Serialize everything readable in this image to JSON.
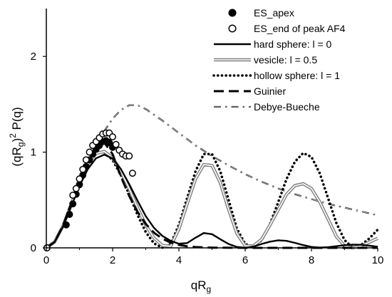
{
  "chart_data": {
    "type": "scatter",
    "xlabel": {
      "base": "qR",
      "sub": "g"
    },
    "ylabel": {
      "pre": "(qR",
      "sub": "g",
      "post": ")",
      "sup": "2",
      "tail": " P(q)"
    },
    "xlim": [
      0,
      10
    ],
    "ylim": [
      0,
      2.5
    ],
    "xticks": [
      "0",
      "2",
      "4",
      "6",
      "8",
      "10"
    ],
    "xtick_values": [
      0,
      2,
      4,
      6,
      8,
      10
    ],
    "yticks": [
      "0",
      "1",
      "2"
    ],
    "ytick_values": [
      0,
      1,
      2
    ],
    "grid": false,
    "legend_position": "top-right",
    "series": [
      {
        "name": "ES_apex",
        "kind": "points-filled",
        "color": "#000000",
        "points": [
          [
            0.02,
            0.0
          ],
          [
            0.6,
            0.24
          ],
          [
            0.7,
            0.35
          ],
          [
            0.8,
            0.46
          ],
          [
            0.9,
            0.56
          ],
          [
            1.0,
            0.66
          ],
          [
            1.1,
            0.76
          ],
          [
            1.2,
            0.85
          ],
          [
            1.3,
            0.92
          ],
          [
            1.4,
            0.98
          ],
          [
            1.5,
            1.03
          ],
          [
            1.6,
            1.07
          ],
          [
            1.7,
            1.11
          ],
          [
            1.8,
            1.12
          ],
          [
            1.9,
            1.1
          ],
          [
            2.0,
            1.05
          ]
        ]
      },
      {
        "name": "ES_end of peak AF4",
        "kind": "points-open",
        "color": "#000000",
        "points": [
          [
            0.02,
            0.0
          ],
          [
            0.8,
            0.55
          ],
          [
            0.9,
            0.62
          ],
          [
            1.0,
            0.72
          ],
          [
            1.1,
            0.82
          ],
          [
            1.2,
            0.92
          ],
          [
            1.3,
            1.0
          ],
          [
            1.4,
            1.07
          ],
          [
            1.5,
            1.11
          ],
          [
            1.6,
            1.15
          ],
          [
            1.7,
            1.19
          ],
          [
            1.8,
            1.2
          ],
          [
            1.9,
            1.2
          ],
          [
            2.0,
            1.16
          ],
          [
            2.1,
            1.08
          ],
          [
            2.2,
            1.02
          ],
          [
            2.3,
            0.98
          ],
          [
            2.4,
            0.96
          ],
          [
            2.5,
            0.96
          ],
          [
            2.6,
            0.78
          ]
        ]
      },
      {
        "name": "hard sphere: l = 0",
        "kind": "line-solid",
        "color": "#000000",
        "points": [
          [
            0,
            0
          ],
          [
            0.25,
            0.061
          ],
          [
            0.5,
            0.221
          ],
          [
            0.75,
            0.433
          ],
          [
            1.0,
            0.645
          ],
          [
            1.25,
            0.822
          ],
          [
            1.5,
            0.936
          ],
          [
            1.75,
            0.974
          ],
          [
            2.0,
            0.934
          ],
          [
            2.25,
            0.823
          ],
          [
            2.5,
            0.666
          ],
          [
            2.75,
            0.493
          ],
          [
            3.0,
            0.332
          ],
          [
            3.25,
            0.208
          ],
          [
            3.5,
            0.125
          ],
          [
            3.75,
            0.074
          ],
          [
            4.0,
            0.043
          ],
          [
            4.25,
            0.05
          ],
          [
            4.5,
            0.106
          ],
          [
            4.75,
            0.155
          ],
          [
            5.0,
            0.143
          ],
          [
            5.25,
            0.09
          ],
          [
            5.5,
            0.04
          ],
          [
            5.75,
            0.01
          ],
          [
            6.0,
            0.0
          ],
          [
            6.25,
            0.014
          ],
          [
            6.5,
            0.041
          ],
          [
            6.75,
            0.065
          ],
          [
            7.0,
            0.079
          ],
          [
            7.25,
            0.073
          ],
          [
            7.5,
            0.052
          ],
          [
            7.75,
            0.029
          ],
          [
            8.0,
            0.01
          ],
          [
            8.25,
            0.003
          ],
          [
            8.5,
            0.007
          ],
          [
            8.75,
            0.017
          ],
          [
            9.0,
            0.028
          ],
          [
            9.25,
            0.034
          ],
          [
            9.5,
            0.032
          ],
          [
            9.75,
            0.022
          ],
          [
            10.0,
            0.012
          ]
        ]
      },
      {
        "name": "vesicle: l = 0.5",
        "kind": "line-double",
        "color": "#808080",
        "points": [
          [
            0,
            0
          ],
          [
            0.25,
            0.062
          ],
          [
            0.5,
            0.227
          ],
          [
            0.75,
            0.452
          ],
          [
            1.0,
            0.685
          ],
          [
            1.25,
            0.874
          ],
          [
            1.5,
            0.986
          ],
          [
            1.75,
            1.007
          ],
          [
            2.0,
            0.941
          ],
          [
            2.25,
            0.803
          ],
          [
            2.5,
            0.618
          ],
          [
            2.75,
            0.42
          ],
          [
            3.0,
            0.239
          ],
          [
            3.25,
            0.102
          ],
          [
            3.5,
            0.025
          ],
          [
            3.75,
            0.016
          ],
          [
            4.0,
            0.198
          ],
          [
            4.25,
            0.46
          ],
          [
            4.5,
            0.72
          ],
          [
            4.75,
            0.87
          ],
          [
            5.0,
            0.86
          ],
          [
            5.25,
            0.68
          ],
          [
            5.5,
            0.4
          ],
          [
            5.75,
            0.15
          ],
          [
            6.0,
            0.02
          ],
          [
            6.25,
            0.02
          ],
          [
            6.5,
            0.09
          ],
          [
            6.75,
            0.24
          ],
          [
            7.0,
            0.4
          ],
          [
            7.25,
            0.56
          ],
          [
            7.5,
            0.65
          ],
          [
            7.75,
            0.67
          ],
          [
            8.0,
            0.62
          ],
          [
            8.25,
            0.48
          ],
          [
            8.5,
            0.3
          ],
          [
            8.75,
            0.12
          ],
          [
            9.0,
            0.02
          ],
          [
            9.25,
            0.0
          ],
          [
            9.5,
            0.02
          ],
          [
            9.75,
            0.06
          ],
          [
            10.0,
            0.1
          ]
        ]
      },
      {
        "name": "hollow sphere: l = 1",
        "kind": "line-dotted",
        "color": "#000000",
        "points": [
          [
            0,
            0
          ],
          [
            0.25,
            0.063
          ],
          [
            0.5,
            0.229
          ],
          [
            0.75,
            0.458
          ],
          [
            1.0,
            0.693
          ],
          [
            1.25,
            0.882
          ],
          [
            1.5,
            0.99
          ],
          [
            1.75,
            1.0
          ],
          [
            2.0,
            0.917
          ],
          [
            2.25,
            0.76
          ],
          [
            2.5,
            0.555
          ],
          [
            2.75,
            0.345
          ],
          [
            3.0,
            0.165
          ],
          [
            3.25,
            0.046
          ],
          [
            3.5,
            0.002
          ],
          [
            3.75,
            0.04
          ],
          [
            4.0,
            0.24
          ],
          [
            4.25,
            0.52
          ],
          [
            4.5,
            0.8
          ],
          [
            4.75,
            0.98
          ],
          [
            5.0,
            0.98
          ],
          [
            5.25,
            0.8
          ],
          [
            5.5,
            0.5
          ],
          [
            5.75,
            0.2
          ],
          [
            6.0,
            0.04
          ],
          [
            6.25,
            0.01
          ],
          [
            6.5,
            0.08
          ],
          [
            6.75,
            0.25
          ],
          [
            7.0,
            0.48
          ],
          [
            7.25,
            0.72
          ],
          [
            7.5,
            0.9
          ],
          [
            7.75,
            0.99
          ],
          [
            8.0,
            0.95
          ],
          [
            8.25,
            0.78
          ],
          [
            8.5,
            0.52
          ],
          [
            8.75,
            0.26
          ],
          [
            9.0,
            0.08
          ],
          [
            9.25,
            0.0
          ],
          [
            9.5,
            0.03
          ],
          [
            9.75,
            0.1
          ],
          [
            10.0,
            0.19
          ]
        ]
      },
      {
        "name": "Guinier",
        "kind": "line-dashed",
        "color": "#000000",
        "points": [
          [
            0,
            0
          ],
          [
            0.25,
            0.061
          ],
          [
            0.5,
            0.229
          ],
          [
            0.75,
            0.467
          ],
          [
            1.0,
            0.717
          ],
          [
            1.25,
            0.926
          ],
          [
            1.5,
            1.054
          ],
          [
            1.75,
            1.099
          ],
          [
            2.0,
            0.979
          ],
          [
            2.25,
            0.744
          ],
          [
            2.5,
            0.542
          ],
          [
            2.75,
            0.377
          ],
          [
            3.0,
            0.25
          ],
          [
            3.25,
            0.158
          ],
          [
            3.5,
            0.096
          ],
          [
            3.75,
            0.055
          ],
          [
            4.0,
            0.031
          ],
          [
            4.25,
            0.016
          ],
          [
            4.5,
            0.008
          ],
          [
            5.0,
            0.002
          ],
          [
            6.0,
            0.0
          ],
          [
            8.0,
            0.0
          ],
          [
            10.0,
            0.0
          ]
        ]
      },
      {
        "name": "Debye-Bueche",
        "kind": "line-dashdot",
        "color": "#808080",
        "points": [
          [
            1.5,
            1.05
          ],
          [
            1.75,
            1.22
          ],
          [
            2.0,
            1.35
          ],
          [
            2.25,
            1.44
          ],
          [
            2.5,
            1.49
          ],
          [
            2.75,
            1.49
          ],
          [
            3.0,
            1.45
          ],
          [
            3.5,
            1.33
          ],
          [
            4.0,
            1.2
          ],
          [
            4.5,
            1.07
          ],
          [
            5.0,
            0.96
          ],
          [
            5.5,
            0.86
          ],
          [
            6.0,
            0.77
          ],
          [
            6.5,
            0.69
          ],
          [
            7.0,
            0.62
          ],
          [
            7.5,
            0.56
          ],
          [
            8.0,
            0.51
          ],
          [
            8.5,
            0.46
          ],
          [
            9.0,
            0.42
          ],
          [
            9.5,
            0.38
          ],
          [
            10.0,
            0.34
          ]
        ]
      }
    ]
  }
}
